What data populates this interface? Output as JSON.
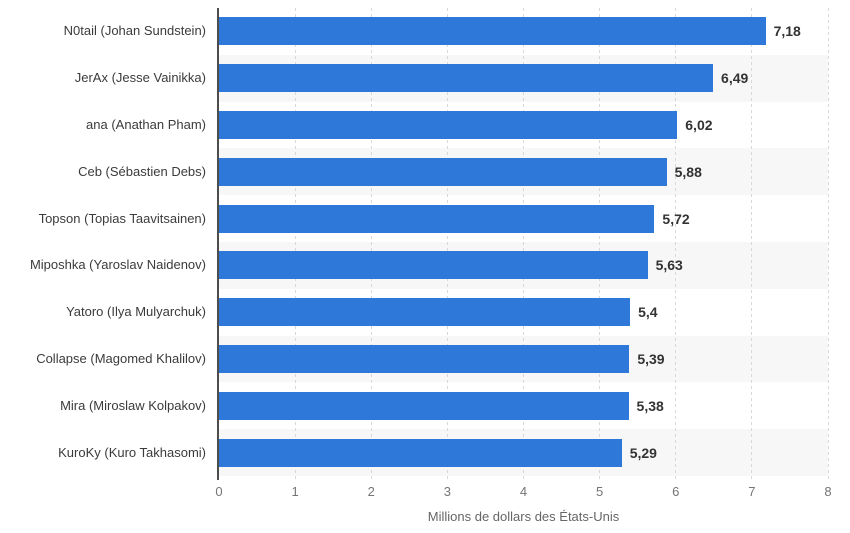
{
  "chart_data": {
    "type": "bar",
    "orientation": "horizontal",
    "title": "",
    "categories": [
      "N0tail (Johan Sundstein)",
      "JerAx (Jesse Vainikka)",
      "ana (Anathan Pham)",
      "Ceb (Sébastien Debs)",
      "Topson (Topias Taavitsainen)",
      "Miposhka (Yaroslav Naidenov)",
      "Yatoro (Ilya Mulyarchuk)",
      "Collapse (Magomed Khalilov)",
      "Mira (Miroslaw Kolpakov)",
      "KuroKy (Kuro Takhasomi)"
    ],
    "values": [
      7.18,
      6.49,
      6.02,
      5.88,
      5.72,
      5.63,
      5.4,
      5.39,
      5.38,
      5.29
    ],
    "value_labels": [
      "7,18",
      "6,49",
      "6,02",
      "5,88",
      "5,72",
      "5,63",
      "5,4",
      "5,39",
      "5,38",
      "5,29"
    ],
    "xlabel": "Millions de dollars des États-Unis",
    "ylabel": "",
    "x_ticks": [
      "0",
      "1",
      "2",
      "3",
      "4",
      "5",
      "6",
      "7",
      "8"
    ],
    "xlim": [
      0,
      8
    ],
    "grid": "vertical-dashed",
    "legend": "none",
    "row_shading": "alternating",
    "colors": {
      "bar": "#2D78D8",
      "row_band": "#F7F7F7",
      "gridline": "#D8D8D8",
      "axis_line": "#4D4D4D",
      "category_text": "#3B3B3B",
      "value_text": "#333333",
      "tick_text": "#757575",
      "axis_title_text": "#666666",
      "background": "#FFFFFF"
    }
  }
}
